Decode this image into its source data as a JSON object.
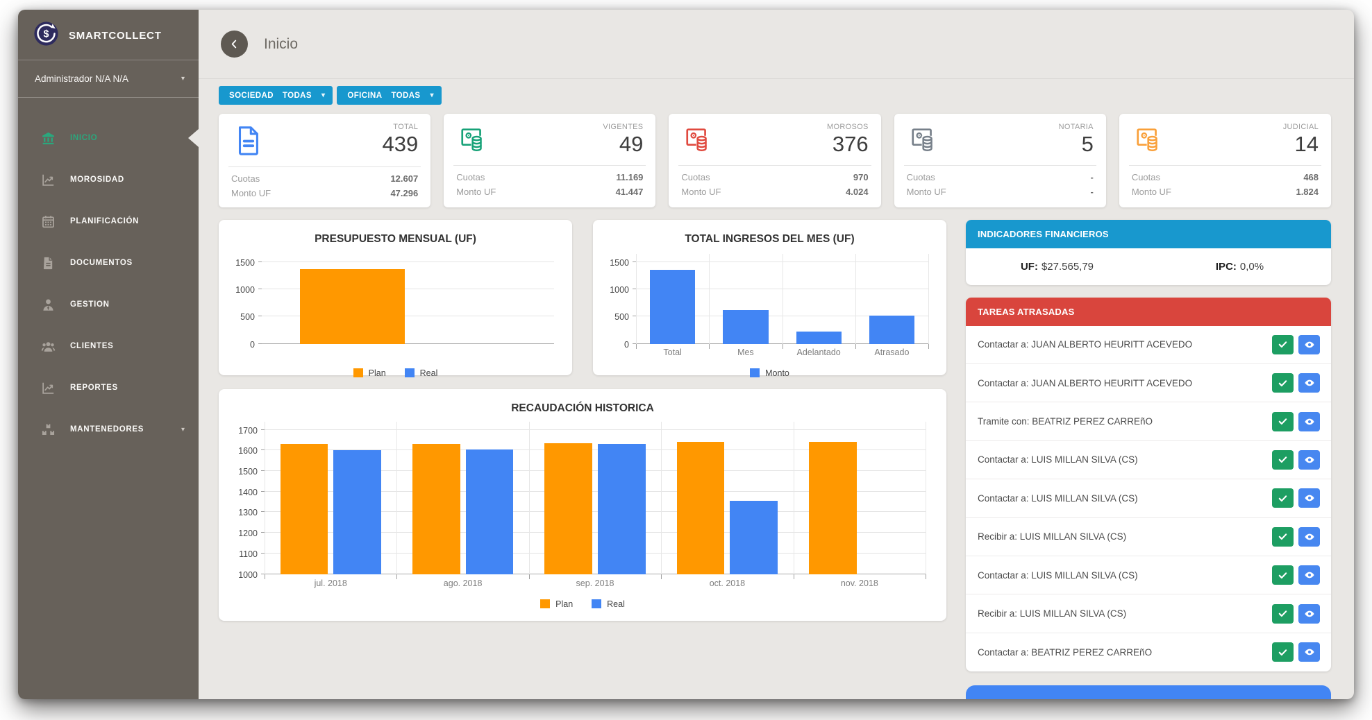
{
  "app": {
    "brand": "SMARTCOLLECT",
    "user_role": "Administrador N/A N/A"
  },
  "topbar": {
    "title": "Inicio"
  },
  "sidebar": {
    "items": [
      {
        "label": "INICIO",
        "icon": "bank-icon",
        "active": true,
        "has_caret": false
      },
      {
        "label": "MOROSIDAD",
        "icon": "line-chart-icon",
        "active": false,
        "has_caret": false
      },
      {
        "label": "PLANIFICACIÓN",
        "icon": "calendar-icon",
        "active": false,
        "has_caret": false
      },
      {
        "label": "DOCUMENTOS",
        "icon": "document-icon",
        "active": false,
        "has_caret": false
      },
      {
        "label": "GESTION",
        "icon": "person-icon",
        "active": false,
        "has_caret": false
      },
      {
        "label": "CLIENTES",
        "icon": "people-icon",
        "active": false,
        "has_caret": false
      },
      {
        "label": "REPORTES",
        "icon": "line-chart-icon",
        "active": false,
        "has_caret": false
      },
      {
        "label": "MANTENEDORES",
        "icon": "boxes-icon",
        "active": false,
        "has_caret": true
      }
    ]
  },
  "filters": [
    {
      "id": "sociedad",
      "name": "SOCIEDAD",
      "value": "TODAS"
    },
    {
      "id": "oficina",
      "name": "OFICINA",
      "value": "TODAS"
    }
  ],
  "stat_labels": {
    "cuotas": "Cuotas",
    "monto_uf": "Monto UF"
  },
  "stat_cards": [
    {
      "label": "TOTAL",
      "value": "439",
      "cuotas": "12.607",
      "monto_uf": "47.296",
      "icon": "document-icon",
      "color": "#4285f4"
    },
    {
      "label": "VIGENTES",
      "value": "49",
      "cuotas": "11.169",
      "monto_uf": "41.447",
      "icon": "money-stack-icon",
      "color": "#17a278"
    },
    {
      "label": "MOROSOS",
      "value": "376",
      "cuotas": "970",
      "monto_uf": "4.024",
      "icon": "money-stack-icon",
      "color": "#e04a3f"
    },
    {
      "label": "NOTARIA",
      "value": "5",
      "cuotas": "-",
      "monto_uf": "-",
      "icon": "money-stack-icon",
      "color": "#77808a"
    },
    {
      "label": "JUDICIAL",
      "value": "14",
      "cuotas": "468",
      "monto_uf": "1.824",
      "icon": "money-stack-icon",
      "color": "#f9a03a"
    }
  ],
  "chart_data": [
    {
      "id": "presupuesto",
      "type": "bar",
      "title": "PRESUPUESTO MENSUAL (UF)",
      "categories": [
        ""
      ],
      "series": [
        {
          "name": "Plan",
          "color": "#ff9800",
          "values": [
            1370
          ]
        },
        {
          "name": "Real",
          "color": "#4285f4",
          "values": [
            null
          ]
        }
      ],
      "xlabel": "",
      "ylabel": "",
      "ylim": [
        0,
        1500
      ],
      "yticks": [
        0,
        500,
        1000,
        1500
      ],
      "legend": [
        "Plan",
        "Real"
      ],
      "legend_position": "bottom",
      "grid": true
    },
    {
      "id": "ingresos",
      "type": "bar",
      "title": "TOTAL INGRESOS DEL MES (UF)",
      "categories": [
        "Total",
        "Mes",
        "Adelantado",
        "Atrasado"
      ],
      "series": [
        {
          "name": "Monto",
          "color": "#4285f4",
          "values": [
            1360,
            620,
            230,
            510
          ]
        }
      ],
      "xlabel": "",
      "ylabel": "",
      "ylim": [
        0,
        1500
      ],
      "yticks": [
        0,
        500,
        1000,
        1500
      ],
      "legend": [
        "Monto"
      ],
      "legend_position": "bottom",
      "grid": true
    },
    {
      "id": "recaudacion",
      "type": "bar",
      "title": "RECAUDACIÓN HISTORICA",
      "categories": [
        "jul. 2018",
        "ago. 2018",
        "sep. 2018",
        "oct. 2018",
        "nov. 2018"
      ],
      "series": [
        {
          "name": "Plan",
          "color": "#ff9800",
          "values": [
            1630,
            1633,
            1636,
            1640,
            1640
          ]
        },
        {
          "name": "Real",
          "color": "#4285f4",
          "values": [
            1600,
            1605,
            1630,
            1355,
            null
          ]
        }
      ],
      "xlabel": "",
      "ylabel": "",
      "ylim": [
        1000,
        1700
      ],
      "yticks": [
        1000,
        1100,
        1200,
        1300,
        1400,
        1500,
        1600,
        1700
      ],
      "legend": [
        "Plan",
        "Real"
      ],
      "legend_position": "bottom",
      "grid": true
    }
  ],
  "indicators": {
    "title": "INDICADORES FINANCIEROS",
    "uf_label": "UF:",
    "uf_value": "$27.565,79",
    "ipc_label": "IPC:",
    "ipc_value": "0,0%"
  },
  "tasks": {
    "title": "TAREAS ATRASADAS",
    "items": [
      "Contactar a: JUAN ALBERTO HEURITT ACEVEDO",
      "Contactar a: JUAN ALBERTO HEURITT ACEVEDO",
      "Tramite con: BEATRIZ PEREZ CARREñO",
      "Contactar a: LUIS MILLAN SILVA (CS)",
      "Contactar a: LUIS MILLAN SILVA (CS)",
      "Recibir a: LUIS MILLAN SILVA (CS)",
      "Contactar a: LUIS MILLAN SILVA (CS)",
      "Recibir a: LUIS MILLAN SILVA (CS)",
      "Contactar a: BEATRIZ PEREZ CARREñO"
    ]
  },
  "colors": {
    "accent_cyan": "#1898ce",
    "alert_red": "#d9453d",
    "success_green": "#1d9e62",
    "primary_blue": "#4285f4",
    "plan_orange": "#ff9800",
    "sidebar_bg": "#67615a",
    "active_green": "#2ba77d"
  }
}
